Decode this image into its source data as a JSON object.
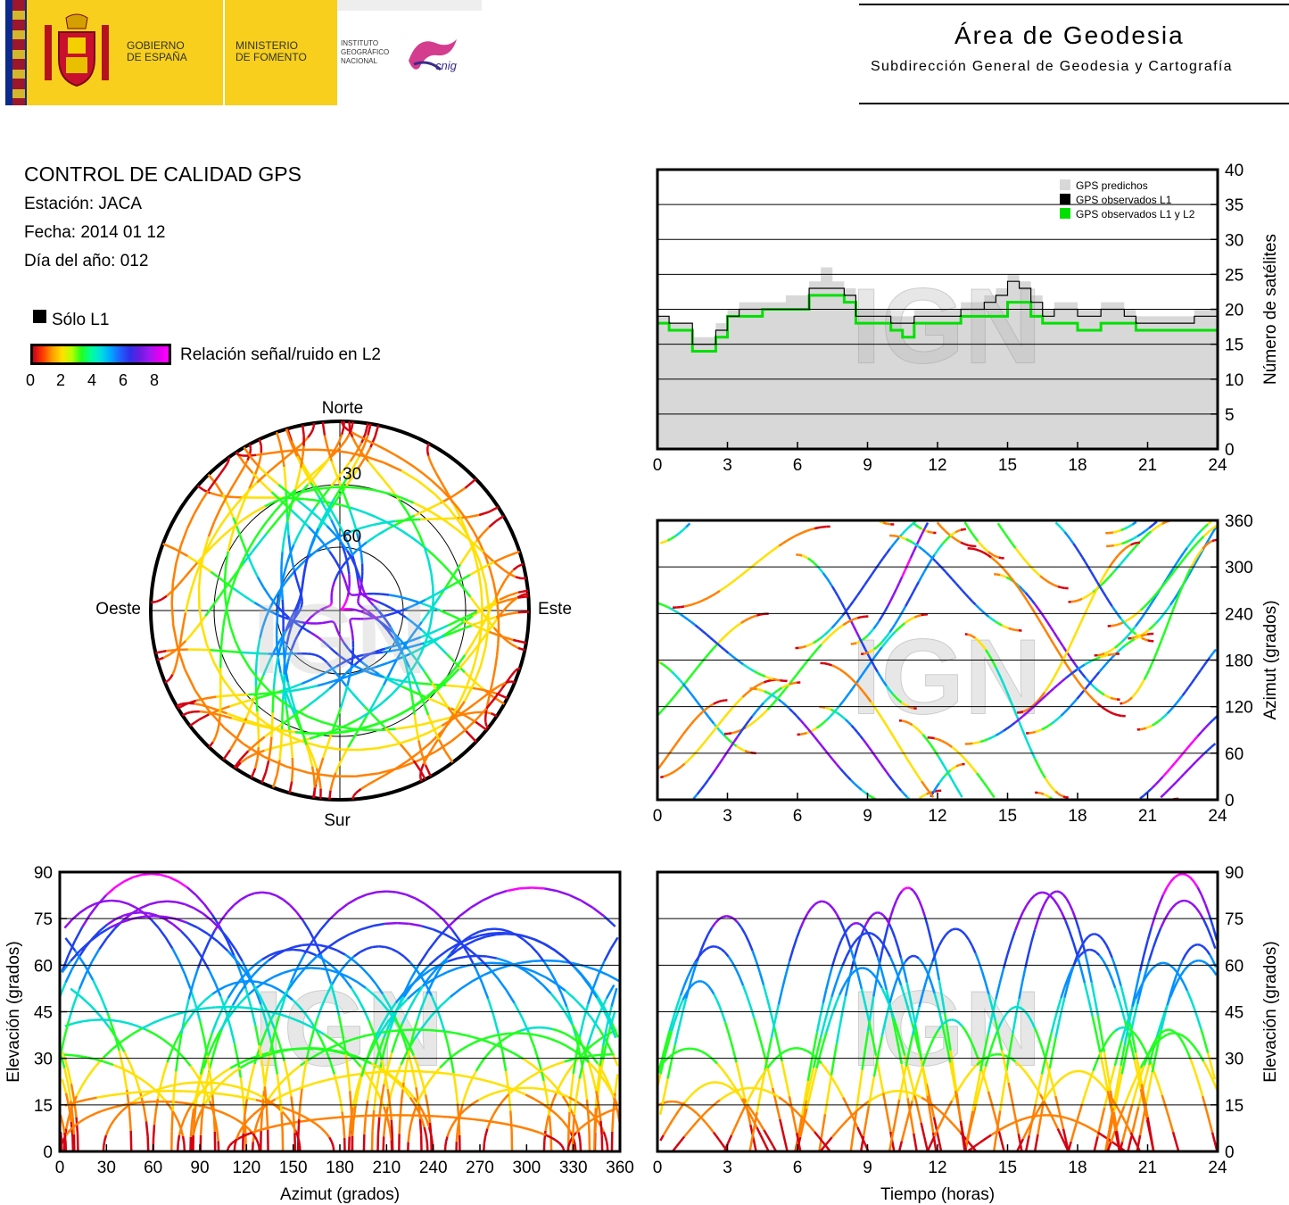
{
  "header": {
    "gobierno": [
      "GOBIERNO",
      "DE ESPAÑA"
    ],
    "ministerio": [
      "MINISTERIO",
      "DE FOMENTO"
    ],
    "instituto": [
      "INSTITUTO",
      "GEOGRÁFICO",
      "NACIONAL"
    ],
    "cnig": "cnig",
    "area_title": "Área de Geodesia",
    "area_subtitle": "Subdirección General de Geodesia y Cartografía"
  },
  "info": {
    "title": "CONTROL DE CALIDAD GPS",
    "station": "Estación: JACA",
    "date": "Fecha: 2014 01 12",
    "doy": "Día del año: 012",
    "legend_l1": "Sólo L1",
    "colorbar_label": "Relación señal/ruido en L2",
    "colorbar_ticks": [
      "0",
      "2",
      "4",
      "6",
      "8"
    ]
  },
  "watermark": "IGN",
  "colors": {
    "predicted": "#d8d8d8",
    "observed_l1": "#000000",
    "observed_l1_l2": "#00e000",
    "snr_scale": [
      "#d40010",
      "#ff8000",
      "#ffe000",
      "#20ff20",
      "#00e0d0",
      "#0090ff",
      "#2040f0",
      "#9010f0",
      "#ff00ff"
    ]
  },
  "chart_data": [
    {
      "id": "skyplot",
      "type": "scatter",
      "projection": "polar",
      "labels": {
        "north": "Norte",
        "south": "Sur",
        "east": "Este",
        "west": "Oeste"
      },
      "rings": [
        "30",
        "60"
      ]
    },
    {
      "id": "satellite_count",
      "type": "line",
      "xlabel": "",
      "ylabel": "Número de satélites",
      "xlim": [
        0,
        24
      ],
      "ylim": [
        0,
        40
      ],
      "xticks": [
        "0",
        "3",
        "6",
        "9",
        "12",
        "15",
        "18",
        "21",
        "24"
      ],
      "yticks": [
        "0",
        "5",
        "10",
        "15",
        "20",
        "25",
        "30",
        "35",
        "40"
      ],
      "legend": [
        "GPS predichos",
        "GPS observados L1",
        "GPS observados L1 y L2"
      ],
      "legend_position": "top-right",
      "grid": true,
      "x": [
        0,
        0.5,
        1,
        1.5,
        2,
        2.5,
        3,
        3.5,
        4,
        4.5,
        5,
        5.5,
        6,
        6.5,
        7,
        7.5,
        8,
        8.5,
        9,
        9.5,
        10,
        10.5,
        11,
        11.5,
        12,
        12.5,
        13,
        13.5,
        14,
        14.5,
        15,
        15.5,
        16,
        16.5,
        17,
        17.5,
        18,
        18.5,
        19,
        19.5,
        20,
        20.5,
        21,
        21.5,
        22,
        22.5,
        23,
        23.5,
        24
      ],
      "series": [
        {
          "name": "GPS predichos",
          "values": [
            19,
            18,
            18,
            16,
            16,
            18,
            20,
            21,
            21,
            21,
            21,
            22,
            22,
            24,
            26,
            24,
            23,
            20,
            20,
            20,
            19,
            19,
            20,
            20,
            20,
            20,
            21,
            21,
            22,
            23,
            25,
            24,
            22,
            20,
            21,
            21,
            20,
            20,
            21,
            21,
            20,
            19,
            19,
            19,
            19,
            19,
            20,
            20,
            20
          ]
        },
        {
          "name": "GPS observados L1",
          "values": [
            19,
            18,
            18,
            15,
            15,
            17,
            19,
            20,
            20,
            20,
            20,
            20,
            20,
            23,
            23,
            23,
            22,
            19,
            19,
            19,
            18,
            18,
            19,
            19,
            19,
            19,
            20,
            20,
            21,
            22,
            24,
            23,
            21,
            19,
            20,
            20,
            19,
            19,
            20,
            20,
            19,
            18,
            18,
            18,
            18,
            18,
            19,
            19,
            19
          ]
        },
        {
          "name": "GPS observados L1 y L2",
          "values": [
            18,
            17,
            17,
            14,
            14,
            16,
            19,
            19,
            19,
            20,
            20,
            20,
            20,
            22,
            22,
            22,
            21,
            18,
            18,
            18,
            17,
            16,
            18,
            18,
            18,
            18,
            19,
            19,
            19,
            19,
            21,
            21,
            19,
            18,
            18,
            18,
            17,
            17,
            18,
            18,
            18,
            17,
            17,
            17,
            17,
            17,
            17,
            17,
            17
          ]
        }
      ]
    },
    {
      "id": "azimuth_time",
      "type": "scatter",
      "xlabel": "",
      "ylabel": "Azimut (grados)",
      "xlim": [
        0,
        24
      ],
      "ylim": [
        0,
        360
      ],
      "xticks": [
        "0",
        "3",
        "6",
        "9",
        "12",
        "15",
        "18",
        "21",
        "24"
      ],
      "yticks": [
        "0",
        "60",
        "120",
        "180",
        "240",
        "300",
        "360"
      ],
      "grid": true
    },
    {
      "id": "elevation_azimuth",
      "type": "scatter",
      "xlabel": "Azimut (grados)",
      "ylabel": "Elevación (grados)",
      "xlim": [
        0,
        360
      ],
      "ylim": [
        0,
        90
      ],
      "xticks": [
        "0",
        "30",
        "60",
        "90",
        "120",
        "150",
        "180",
        "210",
        "240",
        "270",
        "300",
        "330",
        "360"
      ],
      "yticks": [
        "0",
        "15",
        "30",
        "45",
        "60",
        "75",
        "90"
      ],
      "grid": true
    },
    {
      "id": "elevation_time",
      "type": "scatter",
      "xlabel": "Tiempo (horas)",
      "ylabel": "Elevación (grados)",
      "xlim": [
        0,
        24
      ],
      "ylim": [
        0,
        90
      ],
      "xticks": [
        "0",
        "3",
        "6",
        "9",
        "12",
        "15",
        "18",
        "21",
        "24"
      ],
      "yticks": [
        "0",
        "15",
        "30",
        "45",
        "60",
        "75",
        "90"
      ],
      "grid": true
    }
  ]
}
